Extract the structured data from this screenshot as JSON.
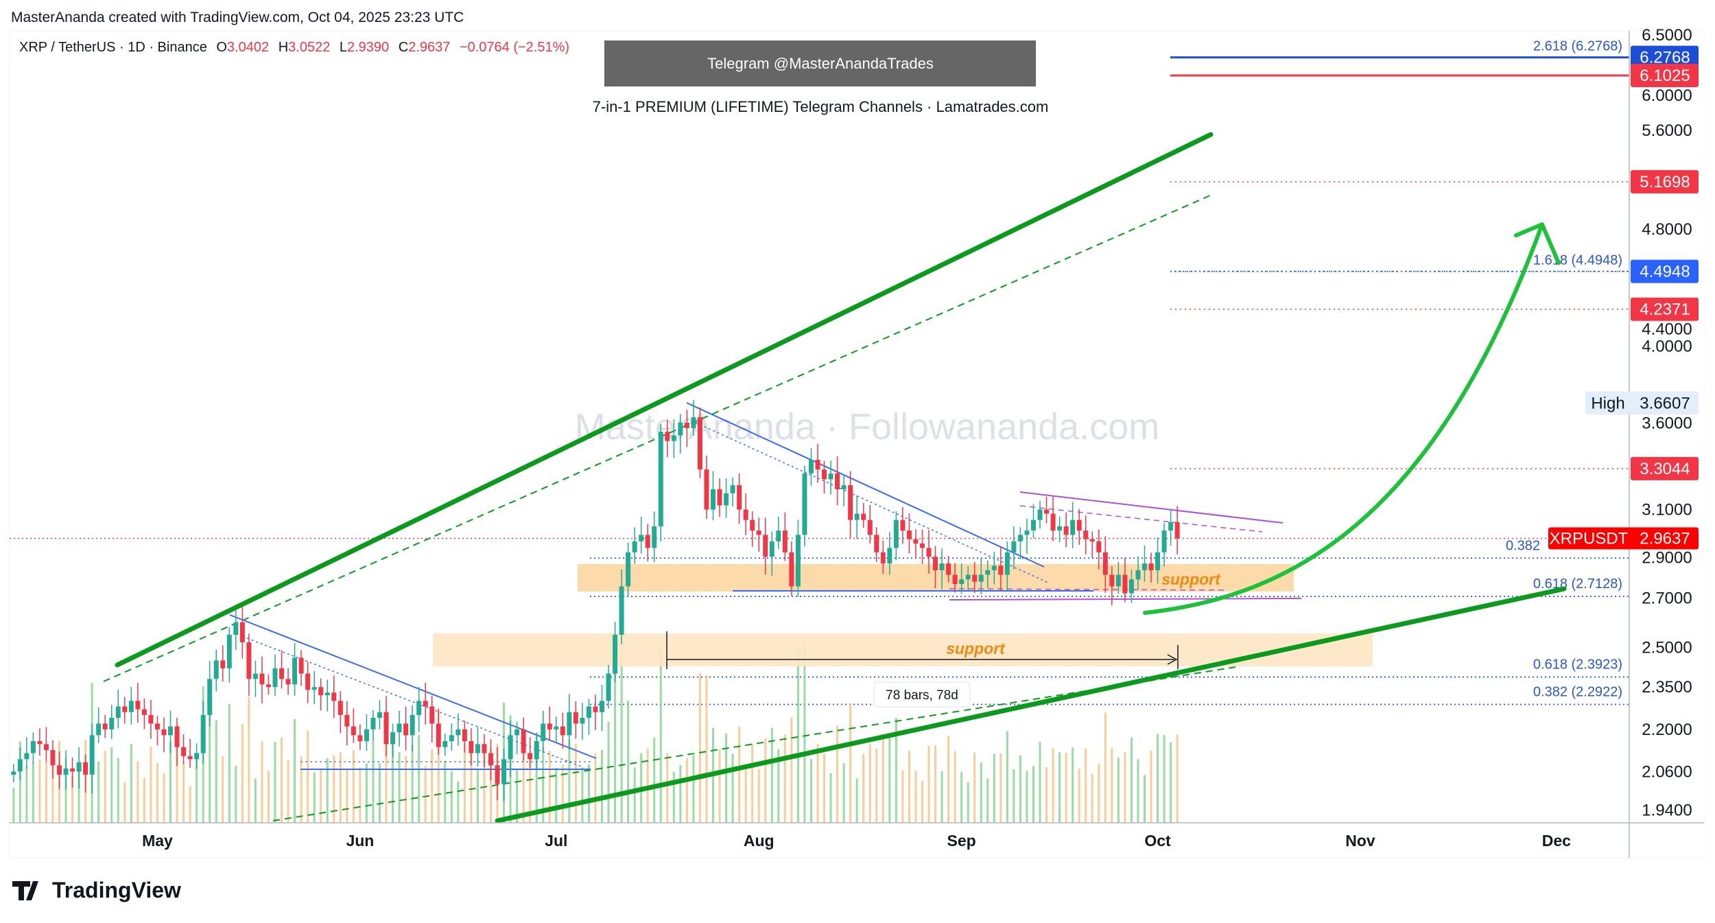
{
  "header": {
    "credit": "MasterAnanda created with TradingView.com, Oct 04, 2025 23:23 UTC",
    "symbol": "XRP / TetherUS · 1D · Binance",
    "o_label": "O",
    "o": "3.0402",
    "h_label": "H",
    "h": "3.0522",
    "l_label": "L",
    "l": "2.9390",
    "c_label": "C",
    "c": "2.9637",
    "change": "−0.0764 (−2.51%)"
  },
  "banner": {
    "telegram": "Telegram @MasterAnandaTrades",
    "subtitle": "7-in-1 PREMIUM (LIFETIME) Telegram Channels · Lamatrades.com",
    "watermark": "MasterAnanda · Followananda.com"
  },
  "logo": {
    "text": "TradingView"
  },
  "colors": {
    "up": "#22ab94",
    "down": "#f23645",
    "trend": "#0b9a1e",
    "arrow": "#1ec23a",
    "fib": "#2a55d6",
    "support": "#fcd49a",
    "purple": "#b14fd6"
  },
  "chart_data": {
    "type": "candlestick",
    "scale": "log",
    "ylim": [
      1.94,
      6.5
    ],
    "start_date": "2025-04-09",
    "closes": [
      2.06,
      2.1,
      2.12,
      2.16,
      2.15,
      2.13,
      2.08,
      2.05,
      2.07,
      2.06,
      2.09,
      2.05,
      2.18,
      2.22,
      2.2,
      2.24,
      2.28,
      2.26,
      2.3,
      2.27,
      2.25,
      2.22,
      2.2,
      2.18,
      2.21,
      2.14,
      2.11,
      2.1,
      2.12,
      2.25,
      2.38,
      2.45,
      2.42,
      2.55,
      2.6,
      2.52,
      2.38,
      2.4,
      2.36,
      2.35,
      2.42,
      2.38,
      2.36,
      2.46,
      2.4,
      2.34,
      2.35,
      2.32,
      2.33,
      2.3,
      2.25,
      2.21,
      2.18,
      2.16,
      2.2,
      2.24,
      2.26,
      2.15,
      2.19,
      2.22,
      2.18,
      2.25,
      2.3,
      2.28,
      2.22,
      2.14,
      2.16,
      2.18,
      2.2,
      2.16,
      2.12,
      2.15,
      2.12,
      2.08,
      2.02,
      2.1,
      2.18,
      2.2,
      2.12,
      2.1,
      2.16,
      2.22,
      2.2,
      2.21,
      2.18,
      2.26,
      2.22,
      2.24,
      2.28,
      2.26,
      2.3,
      2.4,
      2.55,
      2.75,
      2.9,
      2.95,
      2.98,
      2.92,
      3.02,
      3.5,
      3.45,
      3.48,
      3.55,
      3.52,
      3.58,
      3.3,
      3.1,
      3.2,
      3.12,
      3.18,
      3.22,
      3.1,
      3.05,
      3.0,
      2.98,
      2.88,
      2.95,
      3.0,
      2.9,
      2.75,
      2.98,
      3.28,
      3.35,
      3.3,
      3.25,
      3.28,
      3.2,
      3.22,
      3.05,
      3.08,
      3.05,
      2.98,
      2.9,
      2.85,
      2.92,
      3.05,
      3.0,
      2.96,
      2.94,
      2.92,
      2.88,
      2.82,
      2.85,
      2.8,
      2.76,
      2.78,
      2.8,
      2.77,
      2.8,
      2.82,
      2.84,
      2.8,
      2.9,
      2.95,
      2.98,
      3.0,
      3.05,
      3.1,
      3.08,
      3.0,
      3.02,
      2.98,
      3.05,
      3.0,
      2.96,
      2.95,
      2.9,
      2.8,
      2.75,
      2.8,
      2.72,
      2.78,
      2.82,
      2.85,
      2.82,
      2.9,
      3.0,
      3.04,
      2.9637
    ],
    "y_ticks": [
      "6.5000",
      "6.0000",
      "5.6000",
      "4.8000",
      "4.4000",
      "4.0000",
      "3.6000",
      "3.1000",
      "2.9000",
      "2.7000",
      "2.5000",
      "2.3500",
      "2.2000",
      "2.0600",
      "1.9400"
    ],
    "x_ticks": [
      {
        "label": "May",
        "date": "2025-05-01"
      },
      {
        "label": "Jun",
        "date": "2025-06-01"
      },
      {
        "label": "Jul",
        "date": "2025-07-01"
      },
      {
        "label": "Aug",
        "date": "2025-08-01"
      },
      {
        "label": "Sep",
        "date": "2025-09-01"
      },
      {
        "label": "Oct",
        "date": "2025-10-01"
      },
      {
        "label": "Nov",
        "date": "2025-11-01"
      },
      {
        "label": "Dec",
        "date": "2025-12-01"
      }
    ],
    "price_badges": [
      {
        "value": "6.2768",
        "color": "#1d4ed8"
      },
      {
        "value": "6.1025",
        "color": "#f23645"
      },
      {
        "value": "5.1698",
        "color": "#f23645"
      },
      {
        "value": "4.4948",
        "color": "#2962ff"
      },
      {
        "value": "4.2371",
        "color": "#f23645"
      },
      {
        "value": "3.3044",
        "color": "#f23645"
      }
    ],
    "high": {
      "label": "High",
      "value": "3.6607"
    },
    "current": {
      "symbol": "XRPUSDT",
      "value": "2.9637"
    },
    "fib_levels": [
      {
        "label": "2.618 (6.2768)",
        "price": 6.2768
      },
      {
        "label": "1.618 (4.4948)",
        "price": 4.4948
      },
      {
        "label": "0.382",
        "price": 2.88
      },
      {
        "label": "0.618 (2.7128)",
        "price": 2.7128
      },
      {
        "label": "0.618 (2.3923)",
        "price": 2.3923
      },
      {
        "label": "0.382 (2.2922)",
        "price": 2.2922
      }
    ],
    "annotations": {
      "support_1": "support",
      "support_2": "support",
      "range": "78 bars, 78d"
    }
  }
}
